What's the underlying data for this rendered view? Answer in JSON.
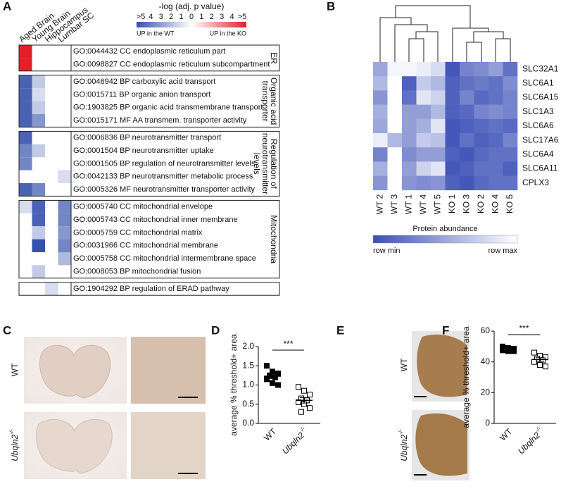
{
  "panel_labels": [
    "A",
    "B",
    "C",
    "D",
    "E",
    "F"
  ],
  "chart_data": [
    {
      "type": "heatmap_groups",
      "title": "-log (adj. p value)",
      "columns": [
        "Aged Brain",
        "Young Brain",
        "Hippocampus",
        "Lumbar SC"
      ],
      "clim": [
        -5,
        5
      ],
      "cticks": [
        {
          "value": -5,
          "label": ">5"
        },
        {
          "value": -4,
          "label": "4"
        },
        {
          "value": -3,
          "label": "3"
        },
        {
          "value": -2,
          "label": "2"
        },
        {
          "value": -1,
          "label": "1"
        },
        0,
        1,
        2,
        3,
        4,
        {
          "value": 5,
          "label": ">5"
        }
      ],
      "low_label": "UP in the WT",
      "high_label": "UP in the KO",
      "colors": {
        "low": "#3551ab",
        "mid": "#ffffff",
        "high": "#e3202a"
      },
      "groups": [
        {
          "label": [
            "ER"
          ],
          "rows": [
            {
              "label": "GO:0044432 CC endoplasmic reticulum part",
              "values": [
                5,
                null,
                null,
                null
              ]
            },
            {
              "label": "GO:0098827 CC endoplasmic reticulum subcompartment",
              "values": [
                5,
                null,
                null,
                null
              ]
            }
          ]
        },
        {
          "label": [
            "Organic acid",
            "transporter"
          ],
          "rows": [
            {
              "label": "GO:0046942 BP carboxylic acid transport",
              "values": [
                -4.5,
                -1.5,
                null,
                null
              ]
            },
            {
              "label": "GO:0015711 BP organic anion transport",
              "values": [
                -4.5,
                -1,
                null,
                null
              ]
            },
            {
              "label": "GO:1903825 BP organic acid transmembrane transport",
              "values": [
                -4.5,
                -1.5,
                null,
                null
              ]
            },
            {
              "label": "GO:0015171 MF AA transmem. transporter activity",
              "values": [
                -4.5,
                -3,
                null,
                null
              ]
            }
          ]
        },
        {
          "label": [
            "Regulation of",
            "neurotransmitter",
            "levels"
          ],
          "rows": [
            {
              "label": "GO:0006836 BP neurotransmitter transport",
              "values": [
                -4.5,
                null,
                null,
                null
              ]
            },
            {
              "label": "GO:0001504 BP neurotransmitter uptake",
              "values": [
                -3.5,
                -1.5,
                null,
                null
              ]
            },
            {
              "label": "GO:0001505 BP regulation of neurotransmitter levels",
              "values": [
                -3.5,
                null,
                null,
                null
              ]
            },
            {
              "label": "GO:0042133 BP neurotransmitter metabolic process",
              "values": [
                null,
                null,
                null,
                -1
              ]
            },
            {
              "label": "GO:0005326 MF neurotransmitter transporter activity",
              "values": [
                -4.5,
                -3.5,
                null,
                null
              ]
            }
          ]
        },
        {
          "label": [
            "Mitochondria"
          ],
          "rows": [
            {
              "label": "GO:0005740 CC mitochondrial envelope",
              "values": [
                -1,
                -4.5,
                null,
                -3.5
              ]
            },
            {
              "label": "GO:0005743 CC mitochondrial inner membrane",
              "values": [
                null,
                -4.5,
                null,
                -3.5
              ]
            },
            {
              "label": "GO:0005759 CC mitochondrial matrix",
              "values": [
                null,
                -1.5,
                null,
                -3
              ]
            },
            {
              "label": "GO:0031966 CC mitochondrial membrane",
              "values": [
                null,
                -5,
                null,
                -3.5
              ]
            },
            {
              "label": "GO:0005758 CC mitochondrial intermembrane space",
              "values": [
                null,
                null,
                null,
                -2
              ]
            },
            {
              "label": "GO:0008053 BP mitochondrial fusion",
              "values": [
                null,
                -1.5,
                null,
                null
              ]
            }
          ]
        },
        {
          "rows": [
            {
              "label": "GO:1904292 BP regulation of ERAD pathway",
              "values": [
                null,
                null,
                -1,
                null
              ]
            }
          ]
        }
      ]
    },
    {
      "type": "heatmap",
      "rows": [
        "SLC32A1",
        "SLC6A1",
        "SLC6A15",
        "SLC1A3",
        "SLC6A6",
        "SLC17A6",
        "SLC6A4",
        "SLC6A11",
        "CPLX3"
      ],
      "columns": [
        "WT 2",
        "WT 3",
        "WT 1",
        "WT 4",
        "WT 5",
        "KO 1",
        "KO 3",
        "KO 2",
        "KO 4",
        "KO 5"
      ],
      "values": [
        [
          0.5,
          0.95,
          0.95,
          0.9,
          0.8,
          0.05,
          0.3,
          0.35,
          0.45,
          0.2
        ],
        [
          0.6,
          1,
          0.1,
          0.7,
          0.6,
          0.1,
          0.2,
          0.25,
          0.2,
          0.35
        ],
        [
          0.4,
          1,
          0.2,
          0.85,
          0.75,
          0.1,
          0.3,
          0.15,
          0.2,
          0.3
        ],
        [
          0.55,
          1,
          0.45,
          0.45,
          0.6,
          0.1,
          0.15,
          0.3,
          0.35,
          0.3
        ],
        [
          0.5,
          1,
          0.45,
          0.55,
          0.85,
          0.05,
          0.1,
          0.15,
          0.2,
          0.15
        ],
        [
          0.9,
          0.6,
          0.45,
          0.7,
          0.65,
          0.05,
          0.2,
          0.1,
          0.15,
          0.3
        ],
        [
          0.3,
          1,
          0.35,
          0.45,
          0.45,
          0.1,
          0.05,
          0.15,
          0.2,
          0.2
        ],
        [
          0.55,
          1,
          0.45,
          0.75,
          0.85,
          0.05,
          0.1,
          0.2,
          0.2,
          0.1
        ],
        [
          0.4,
          1,
          0.4,
          0.35,
          0.4,
          0.1,
          0.05,
          0.15,
          0.2,
          0.2
        ]
      ],
      "clim": [
        0,
        1
      ],
      "cticks": [
        {
          "value": 0,
          "label": "row min"
        },
        {
          "value": 1,
          "label": "row max"
        }
      ],
      "colorbar_title": "Protein abundance",
      "colors": {
        "low": "#3a4fb6",
        "high": "#ffffff"
      }
    },
    {
      "type": "dot_scatter",
      "ylabel": "average % threshold+ area",
      "categories": [
        "WT",
        "Ubqln2"
      ],
      "category_superscripts": [
        null,
        "-/-"
      ],
      "ylim": [
        0,
        2
      ],
      "yticks": [
        {
          "value": 0,
          "label": "0.0"
        },
        {
          "value": 0.5,
          "label": "0.5"
        },
        {
          "value": 1,
          "label": "1.0"
        },
        {
          "value": 1.5,
          "label": "1.5"
        },
        {
          "value": 2,
          "label": "2.0"
        }
      ],
      "groups": [
        {
          "marker": "filled",
          "values": [
            1.5,
            1.35,
            1.3,
            1.25,
            1.2,
            1.15,
            1.05,
            1.0
          ],
          "mean": 1.23,
          "sem": 0.06
        },
        {
          "marker": "open",
          "values": [
            0.95,
            0.85,
            0.75,
            0.65,
            0.6,
            0.55,
            0.5,
            0.4,
            0.3
          ],
          "mean": 0.6,
          "sem": 0.07
        }
      ],
      "significance": "***"
    },
    {
      "type": "dot_scatter",
      "ylabel": "average % threshold+ area",
      "categories": [
        "WT",
        "Ubqln2"
      ],
      "category_superscripts": [
        null,
        "-/-"
      ],
      "ylim": [
        0,
        60
      ],
      "yticks": [
        0,
        20,
        40,
        60
      ],
      "groups": [
        {
          "marker": "filled",
          "values": [
            50,
            49,
            48.5,
            48,
            48,
            47.5,
            47,
            47
          ],
          "mean": 48,
          "sem": 0.5
        },
        {
          "marker": "open",
          "values": [
            46,
            44,
            43,
            42,
            41,
            40,
            38,
            37
          ],
          "mean": 41.5,
          "sem": 1.2
        }
      ],
      "significance": "***"
    }
  ],
  "images": {
    "C": {
      "row_labels": [
        "WT",
        "Ubqln2"
      ],
      "row_label_superscripts": [
        null,
        "-/-"
      ]
    },
    "E": {
      "row_labels": [
        "WT",
        "Ubqln2"
      ],
      "row_label_superscripts": [
        null,
        "-/-"
      ]
    }
  }
}
